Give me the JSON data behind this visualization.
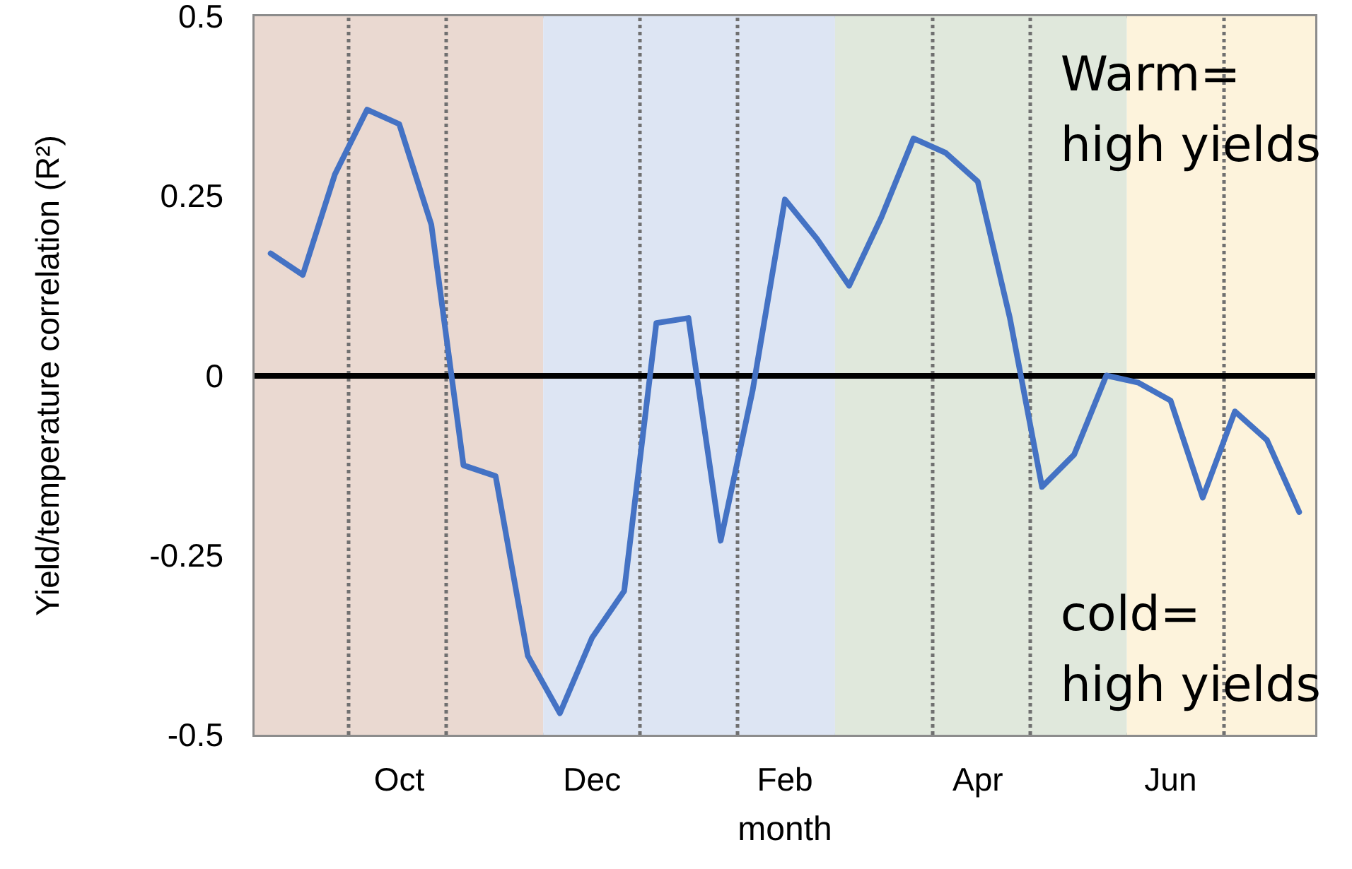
{
  "chart_data": {
    "type": "line",
    "xlabel": "month",
    "ylabel": "Yield/temperature correlation (R²)",
    "categories": [
      null,
      null,
      null,
      null,
      "Oct",
      null,
      null,
      null,
      null,
      null,
      "Dec",
      null,
      null,
      null,
      null,
      null,
      "Feb",
      null,
      null,
      null,
      null,
      null,
      "Apr",
      null,
      null,
      null,
      null,
      null,
      "Jun",
      null,
      null,
      null,
      null
    ],
    "series": [
      {
        "color": "#4472c4",
        "values": [
          0.17,
          0.14,
          0.28,
          0.37,
          0.35,
          0.21,
          -0.125,
          -0.14,
          -0.39,
          -0.47,
          -0.365,
          -0.3,
          0.073,
          0.08,
          -0.23,
          -0.02,
          0.245,
          0.19,
          0.125,
          0.22,
          0.33,
          0.31,
          0.27,
          0.08,
          -0.155,
          -0.11,
          0.0,
          -0.01,
          -0.035,
          -0.17,
          -0.05,
          -0.09,
          -0.19
        ]
      }
    ],
    "ylim": [
      -0.5,
      0.5
    ],
    "yticks": [
      -0.5,
      -0.25,
      0,
      0.25,
      0.5
    ],
    "ref_lines": [
      {
        "axis": "y",
        "value": 0,
        "color": "#000000",
        "line_style": "solid"
      }
    ],
    "annotations": [
      "Warm=\nhigh yields",
      "cold=\nhigh yields"
    ],
    "grid": false,
    "marker": "none",
    "line_style": "solid"
  }
}
